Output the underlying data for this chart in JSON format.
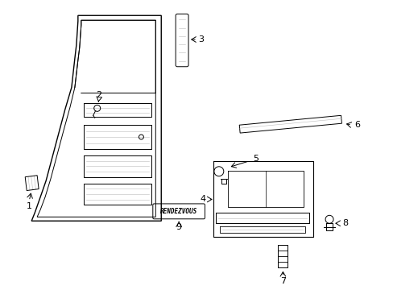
{
  "bg_color": "#ffffff",
  "line_color": "#000000",
  "gray_color": "#999999",
  "light_gray": "#bbbbbb",
  "fig_width": 4.89,
  "fig_height": 3.6,
  "dpi": 100
}
